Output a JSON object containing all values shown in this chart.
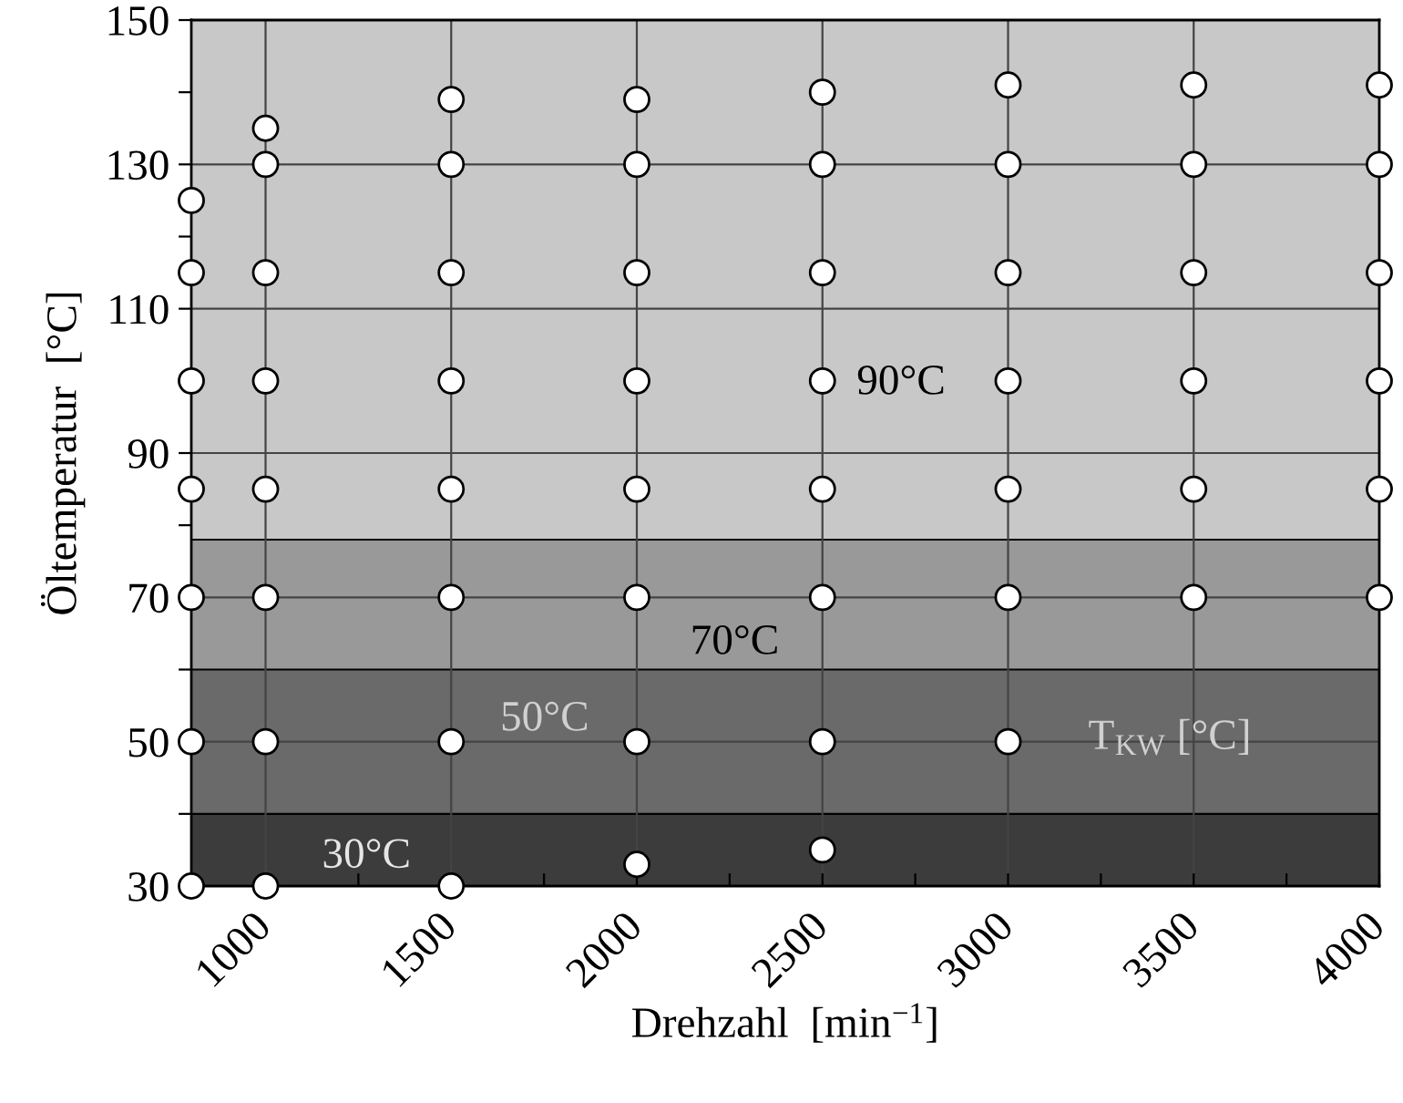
{
  "chart_data": {
    "type": "scatter",
    "xlabel": "Drehzahl  [min$^{−1}$]",
    "ylabel": "Öltemperatur  [°C]",
    "series": [
      {
        "color": "#ffffff",
        "x": [
          800,
          800,
          800,
          800,
          800,
          800,
          800,
          1000,
          1000,
          1000,
          1000,
          1000,
          1000,
          1000,
          1000,
          1500,
          1500,
          1500,
          1500,
          1500,
          1500,
          1500,
          1500,
          2000,
          2000,
          2000,
          2000,
          2000,
          2000,
          2000,
          2000,
          2500,
          2500,
          2500,
          2500,
          2500,
          2500,
          2500,
          2500,
          3000,
          3000,
          3000,
          3000,
          3000,
          3000,
          3000,
          3500,
          3500,
          3500,
          3500,
          3500,
          3500,
          4000,
          4000,
          4000,
          4000,
          4000,
          4000
        ],
        "values": [
          125,
          115,
          100,
          85,
          70,
          50,
          30,
          135,
          130,
          115,
          100,
          85,
          70,
          50,
          30,
          139,
          130,
          115,
          100,
          85,
          70,
          50,
          30,
          139,
          130,
          115,
          100,
          85,
          70,
          50,
          33,
          140,
          130,
          115,
          100,
          85,
          70,
          50,
          35,
          141,
          130,
          115,
          100,
          85,
          70,
          50,
          141,
          130,
          115,
          100,
          85,
          70,
          141,
          130,
          115,
          100,
          85,
          70
        ]
      }
    ],
    "marker": "circle",
    "xlim": [
      800,
      4000
    ],
    "xticks": [
      1000,
      {
        "value": 1250,
        "label": null
      },
      1500,
      {
        "value": 1750,
        "label": null
      },
      2000,
      {
        "value": 2250,
        "label": null
      },
      2500,
      {
        "value": 2750,
        "label": null
      },
      3000,
      {
        "value": 3250,
        "label": null
      },
      3500,
      {
        "value": 3750,
        "label": null
      },
      4000
    ],
    "ylim": [
      30,
      150
    ],
    "yticks": [
      30,
      {
        "value": 40,
        "label": null
      },
      50,
      {
        "value": 60,
        "label": null
      },
      70,
      {
        "value": 80,
        "label": null
      },
      90,
      {
        "value": 100,
        "label": null
      },
      110,
      {
        "value": 120,
        "label": null
      },
      130,
      {
        "value": 140,
        "label": null
      },
      150
    ],
    "grid": true,
    "bands": [
      {
        "axis": "y",
        "from": 30,
        "to": 40,
        "color": "#3c3c3c",
        "label": "30°C"
      },
      {
        "axis": "y",
        "from": 40,
        "to": 60,
        "color": "#6a6a6a",
        "label": "50°C"
      },
      {
        "axis": "y",
        "from": 60,
        "to": 78,
        "color": "#999999",
        "label": "70°C"
      },
      {
        "axis": "y",
        "from": 78,
        "to": 150,
        "color": "#c8c8c8",
        "label": "90°C"
      }
    ],
    "annotations": [
      "T$_{KW}$ [°C]"
    ]
  }
}
